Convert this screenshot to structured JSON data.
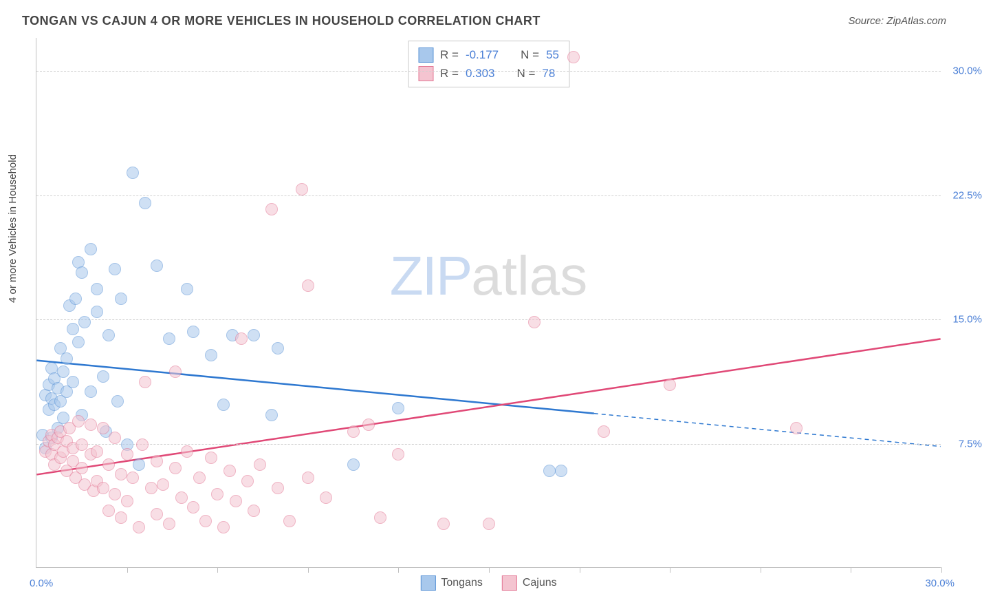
{
  "title": "TONGAN VS CAJUN 4 OR MORE VEHICLES IN HOUSEHOLD CORRELATION CHART",
  "source": "Source: ZipAtlas.com",
  "y_axis_label": "4 or more Vehicles in Household",
  "watermark": {
    "part1": "ZIP",
    "part2": "atlas"
  },
  "chart": {
    "type": "scatter",
    "background_color": "#ffffff",
    "grid_color": "#d0d0d0",
    "axis_color": "#c0c0c0",
    "xlim": [
      0,
      30
    ],
    "ylim": [
      0,
      32
    ],
    "x_min_label": "0.0%",
    "x_max_label": "30.0%",
    "x_tick_positions": [
      3,
      6,
      9,
      12,
      15,
      18,
      21,
      24,
      27,
      30
    ],
    "y_gridlines": [
      7.5,
      15.0,
      22.5,
      30.0
    ],
    "y_tick_labels": [
      "7.5%",
      "15.0%",
      "22.5%",
      "30.0%"
    ],
    "tick_label_color": "#4a7fd6",
    "point_radius": 9,
    "point_opacity": 0.55,
    "series": [
      {
        "name": "Tongans",
        "fill_color": "#a8c8ec",
        "stroke_color": "#5a93d6",
        "line_color": "#2e78d0",
        "R": "-0.177",
        "N": "55",
        "trend": {
          "x1": 0,
          "y1": 12.5,
          "x2": 30,
          "y2": 7.3,
          "solid_until_x": 18.5
        },
        "points": [
          [
            0.2,
            8.0
          ],
          [
            0.3,
            7.2
          ],
          [
            0.3,
            10.4
          ],
          [
            0.4,
            11.0
          ],
          [
            0.4,
            9.5
          ],
          [
            0.5,
            10.2
          ],
          [
            0.5,
            12.0
          ],
          [
            0.5,
            7.8
          ],
          [
            0.6,
            9.8
          ],
          [
            0.6,
            11.4
          ],
          [
            0.7,
            8.4
          ],
          [
            0.7,
            10.8
          ],
          [
            0.8,
            13.2
          ],
          [
            0.8,
            10.0
          ],
          [
            0.9,
            11.8
          ],
          [
            0.9,
            9.0
          ],
          [
            1.0,
            12.6
          ],
          [
            1.0,
            10.6
          ],
          [
            1.1,
            15.8
          ],
          [
            1.2,
            11.2
          ],
          [
            1.2,
            14.4
          ],
          [
            1.3,
            16.2
          ],
          [
            1.4,
            13.6
          ],
          [
            1.4,
            18.4
          ],
          [
            1.5,
            9.2
          ],
          [
            1.5,
            17.8
          ],
          [
            1.6,
            14.8
          ],
          [
            1.8,
            10.6
          ],
          [
            1.8,
            19.2
          ],
          [
            2.0,
            15.4
          ],
          [
            2.0,
            16.8
          ],
          [
            2.2,
            11.5
          ],
          [
            2.3,
            8.2
          ],
          [
            2.4,
            14.0
          ],
          [
            2.6,
            18.0
          ],
          [
            2.7,
            10.0
          ],
          [
            2.8,
            16.2
          ],
          [
            3.0,
            7.4
          ],
          [
            3.2,
            23.8
          ],
          [
            3.4,
            6.2
          ],
          [
            3.6,
            22.0
          ],
          [
            4.0,
            18.2
          ],
          [
            4.4,
            13.8
          ],
          [
            5.0,
            16.8
          ],
          [
            5.2,
            14.2
          ],
          [
            5.8,
            12.8
          ],
          [
            6.2,
            9.8
          ],
          [
            6.5,
            14.0
          ],
          [
            7.2,
            14.0
          ],
          [
            7.8,
            9.2
          ],
          [
            8.0,
            13.2
          ],
          [
            10.5,
            6.2
          ],
          [
            12.0,
            9.6
          ],
          [
            17.0,
            5.8
          ],
          [
            17.4,
            5.8
          ]
        ]
      },
      {
        "name": "Cajuns",
        "fill_color": "#f4c4d0",
        "stroke_color": "#e37795",
        "line_color": "#e04876",
        "R": "0.303",
        "N": "78",
        "trend": {
          "x1": 0,
          "y1": 5.6,
          "x2": 30,
          "y2": 13.8,
          "solid_until_x": 30
        },
        "points": [
          [
            0.3,
            7.0
          ],
          [
            0.4,
            7.6
          ],
          [
            0.5,
            6.8
          ],
          [
            0.5,
            8.0
          ],
          [
            0.6,
            7.4
          ],
          [
            0.6,
            6.2
          ],
          [
            0.7,
            7.8
          ],
          [
            0.8,
            6.6
          ],
          [
            0.8,
            8.2
          ],
          [
            0.9,
            7.0
          ],
          [
            1.0,
            7.6
          ],
          [
            1.0,
            5.8
          ],
          [
            1.1,
            8.4
          ],
          [
            1.2,
            6.4
          ],
          [
            1.2,
            7.2
          ],
          [
            1.3,
            5.4
          ],
          [
            1.4,
            8.8
          ],
          [
            1.5,
            6.0
          ],
          [
            1.5,
            7.4
          ],
          [
            1.6,
            5.0
          ],
          [
            1.8,
            8.6
          ],
          [
            1.8,
            6.8
          ],
          [
            1.9,
            4.6
          ],
          [
            2.0,
            7.0
          ],
          [
            2.0,
            5.2
          ],
          [
            2.2,
            8.4
          ],
          [
            2.2,
            4.8
          ],
          [
            2.4,
            6.2
          ],
          [
            2.4,
            3.4
          ],
          [
            2.6,
            7.8
          ],
          [
            2.6,
            4.4
          ],
          [
            2.8,
            5.6
          ],
          [
            2.8,
            3.0
          ],
          [
            3.0,
            6.8
          ],
          [
            3.0,
            4.0
          ],
          [
            3.2,
            5.4
          ],
          [
            3.4,
            2.4
          ],
          [
            3.5,
            7.4
          ],
          [
            3.6,
            11.2
          ],
          [
            3.8,
            4.8
          ],
          [
            4.0,
            6.4
          ],
          [
            4.0,
            3.2
          ],
          [
            4.2,
            5.0
          ],
          [
            4.4,
            2.6
          ],
          [
            4.6,
            6.0
          ],
          [
            4.6,
            11.8
          ],
          [
            4.8,
            4.2
          ],
          [
            5.0,
            7.0
          ],
          [
            5.2,
            3.6
          ],
          [
            5.4,
            5.4
          ],
          [
            5.6,
            2.8
          ],
          [
            5.8,
            6.6
          ],
          [
            6.0,
            4.4
          ],
          [
            6.2,
            2.4
          ],
          [
            6.4,
            5.8
          ],
          [
            6.6,
            4.0
          ],
          [
            6.8,
            13.8
          ],
          [
            7.0,
            5.2
          ],
          [
            7.2,
            3.4
          ],
          [
            7.4,
            6.2
          ],
          [
            7.8,
            21.6
          ],
          [
            8.0,
            4.8
          ],
          [
            8.4,
            2.8
          ],
          [
            8.8,
            22.8
          ],
          [
            9.0,
            5.4
          ],
          [
            9.0,
            17.0
          ],
          [
            9.6,
            4.2
          ],
          [
            10.5,
            8.2
          ],
          [
            11.0,
            8.6
          ],
          [
            11.4,
            3.0
          ],
          [
            12.0,
            6.8
          ],
          [
            13.5,
            2.6
          ],
          [
            15.0,
            2.6
          ],
          [
            16.5,
            14.8
          ],
          [
            18.8,
            8.2
          ],
          [
            21.0,
            11.0
          ],
          [
            25.2,
            8.4
          ],
          [
            17.8,
            30.8
          ]
        ]
      }
    ],
    "legend_bottom": [
      {
        "label": "Tongans",
        "fill": "#a8c8ec",
        "stroke": "#5a93d6"
      },
      {
        "label": "Cajuns",
        "fill": "#f4c4d0",
        "stroke": "#e37795"
      }
    ]
  }
}
